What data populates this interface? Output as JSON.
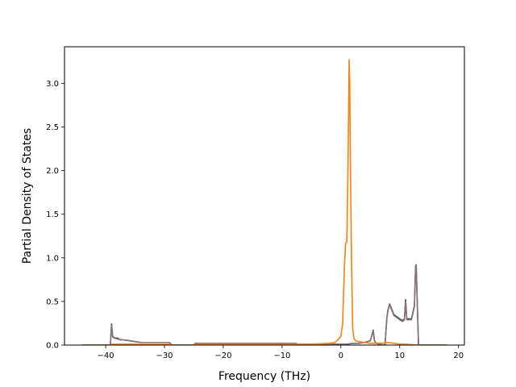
{
  "chart_data": {
    "type": "line",
    "title": "",
    "xlabel": "Frequency (THz)",
    "ylabel": "Partial Density of States",
    "xlim": [
      -47,
      21
    ],
    "ylim": [
      0,
      3.42
    ],
    "xticks": [
      -40,
      -30,
      -20,
      -10,
      0,
      10,
      20
    ],
    "xtick_labels": [
      "−40",
      "−30",
      "−20",
      "−10",
      "0",
      "10",
      "20"
    ],
    "yticks": [
      0,
      0.5,
      1.0,
      1.5,
      2.0,
      2.5,
      3.0
    ],
    "ytick_labels": [
      "0.0",
      "0.5",
      "1.0",
      "1.5",
      "2.0",
      "2.5",
      "3.0"
    ],
    "grid": false,
    "legend": null,
    "series": [
      {
        "color": "#2c3e50",
        "x": [
          -44,
          -39.2,
          -39.0,
          -38.8,
          -38.5,
          -38.0,
          -37.5,
          -37.0,
          -36.0,
          -35.0,
          -34.0,
          -33.0,
          -32.0,
          -31.0,
          -30.0,
          -29.2,
          -29.0,
          -28.8,
          -25.0,
          -24.8,
          -20.0,
          -15.0,
          -10.0,
          -7.6,
          -7.5,
          -5.0,
          -2.0,
          0.0,
          1.0,
          2.0,
          3.0,
          4.0,
          5.0,
          5.5,
          5.7,
          6.0,
          7.0,
          7.5,
          7.8,
          8.0,
          8.3,
          9.0,
          10.0,
          10.5,
          10.8,
          11.0,
          11.2,
          11.5,
          12.0,
          12.5,
          12.7,
          12.8,
          13.0,
          13.2,
          14.0,
          18.0
        ],
        "y": [
          0,
          0,
          0.24,
          0.1,
          0.08,
          0.08,
          0.06,
          0.06,
          0.05,
          0.04,
          0.03,
          0.03,
          0.03,
          0.03,
          0.03,
          0.03,
          0.02,
          0,
          0,
          0.02,
          0.02,
          0.02,
          0.02,
          0.02,
          0.01,
          0.01,
          0.01,
          0.01,
          0.01,
          0.02,
          0.02,
          0.03,
          0.05,
          0.17,
          0.05,
          0.02,
          0,
          0,
          0.3,
          0.4,
          0.47,
          0.35,
          0.3,
          0.28,
          0.3,
          0.52,
          0.3,
          0.3,
          0.3,
          0.45,
          0.9,
          0.92,
          0.45,
          0,
          0,
          0
        ]
      },
      {
        "color": "#8c7373",
        "x": [
          -44,
          -39.2,
          -39.0,
          -38.8,
          -38.5,
          -38.0,
          -37.5,
          -37.0,
          -36.0,
          -35.0,
          -34.0,
          -33.0,
          -32.0,
          -31.0,
          -30.0,
          -29.2,
          -29.0,
          -28.8,
          -25.0,
          -24.8,
          -20.0,
          -15.0,
          -10.0,
          -7.6,
          -7.5,
          -5.0,
          -2.0,
          0.0,
          1.0,
          2.0,
          3.0,
          4.0,
          5.0,
          5.5,
          5.7,
          6.0,
          7.0,
          7.5,
          7.8,
          8.0,
          8.3,
          9.0,
          10.0,
          10.5,
          10.8,
          11.0,
          11.2,
          11.5,
          12.0,
          12.5,
          12.7,
          12.8,
          13.0,
          13.2,
          14.0,
          18.0
        ],
        "y": [
          0,
          0,
          0.23,
          0.09,
          0.08,
          0.07,
          0.06,
          0.06,
          0.05,
          0.04,
          0.03,
          0.03,
          0.03,
          0.03,
          0.03,
          0.03,
          0.02,
          0,
          0,
          0.02,
          0.02,
          0.02,
          0.02,
          0.02,
          0.01,
          0.01,
          0.01,
          0.01,
          0.01,
          0.02,
          0.02,
          0.03,
          0.05,
          0.16,
          0.05,
          0.02,
          0,
          0,
          0.3,
          0.4,
          0.46,
          0.34,
          0.29,
          0.27,
          0.29,
          0.5,
          0.29,
          0.29,
          0.29,
          0.44,
          0.89,
          0.91,
          0.44,
          0,
          0,
          0
        ]
      },
      {
        "color": "#ff7f0e",
        "x": [
          -44,
          -39.2,
          -39.0,
          -38.8,
          -38.0,
          -36.0,
          -34.0,
          -32.0,
          -30.0,
          -29.0,
          -28.8,
          -25.0,
          -24.8,
          -20.0,
          -10.0,
          -5.0,
          -2.0,
          -1.0,
          -0.5,
          0.0,
          0.3,
          0.6,
          0.8,
          1.0,
          1.2,
          1.4,
          1.5,
          1.6,
          1.8,
          2.0,
          2.2,
          2.5,
          3.0,
          4.0,
          5.0,
          6.0,
          7.0,
          8.0,
          9.0,
          10.0,
          11.0,
          13.0,
          18.0
        ],
        "y": [
          0,
          0,
          0.01,
          0.01,
          0.01,
          0.01,
          0.01,
          0.01,
          0.01,
          0.01,
          0,
          0,
          0.01,
          0.01,
          0.01,
          0.01,
          0.02,
          0.03,
          0.06,
          0.1,
          0.25,
          0.9,
          1.17,
          1.18,
          2.0,
          3.27,
          3.0,
          2.2,
          1.0,
          0.2,
          0.08,
          0.05,
          0.04,
          0.03,
          0.02,
          0.02,
          0.02,
          0.03,
          0.02,
          0.01,
          0.01,
          0,
          0
        ]
      }
    ]
  }
}
